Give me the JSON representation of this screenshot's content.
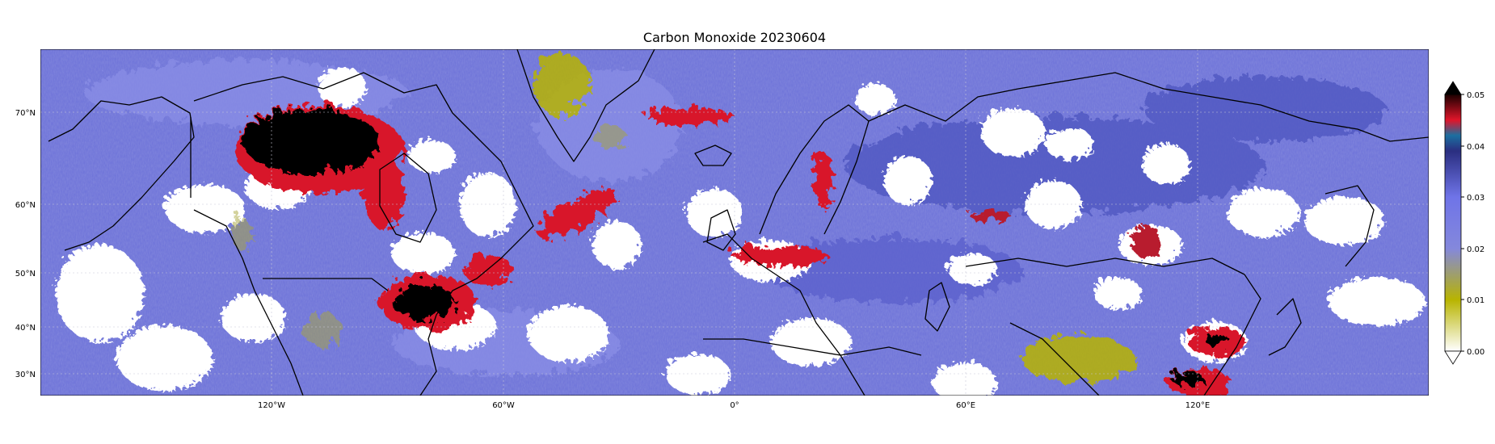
{
  "title": "Carbon Monoxide 20230604",
  "map": {
    "x_ticks": [
      "120°W",
      "60°W",
      "0°",
      "60°E",
      "120°E"
    ],
    "x_tick_lon": [
      -120,
      -60,
      0,
      60,
      120
    ],
    "y_ticks": [
      "70°N",
      "60°N",
      "50°N",
      "40°N",
      "30°N"
    ],
    "y_tick_lat": [
      70,
      60,
      50,
      40,
      30
    ],
    "lon_range": [
      -180,
      180
    ],
    "lat_range": [
      27,
      80
    ],
    "background_color": "#6b70d8",
    "cloud_mask_color": "#ffffff",
    "coastline_color": "#000000"
  },
  "colorbar": {
    "ticks": [
      "0.00",
      "0.01",
      "0.02",
      "0.03",
      "0.04",
      "0.05"
    ],
    "range": [
      0.0,
      0.05
    ],
    "colors": [
      "#ffffff",
      "#b8b400",
      "#7a80ee",
      "#2a2e80",
      "#e0152a",
      "#000000"
    ],
    "extend": "both"
  },
  "hotspots": [
    {
      "region": "northwest-canada",
      "level": 0.05
    },
    {
      "region": "ontario-quebec",
      "level": 0.05
    },
    {
      "region": "north-atlantic-plume",
      "level": 0.045
    },
    {
      "region": "east-china",
      "level": 0.05
    },
    {
      "region": "southeast-asia",
      "level": 0.05
    },
    {
      "region": "tibet-plateau",
      "level": 0.012
    },
    {
      "region": "greenland",
      "level": 0.012
    }
  ]
}
